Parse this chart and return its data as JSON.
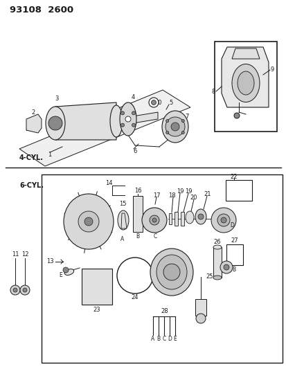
{
  "title": "93108  2600",
  "bg_color": "#ffffff",
  "line_color": "#1a1a1a",
  "fig_width": 4.14,
  "fig_height": 5.33,
  "dpi": 100,
  "section1_label": "4-CYL.",
  "section2_label": "6-CYL.",
  "gray_light": "#cccccc",
  "gray_mid": "#aaaaaa",
  "gray_dark": "#888888",
  "gray_fill": "#e0e0e0"
}
